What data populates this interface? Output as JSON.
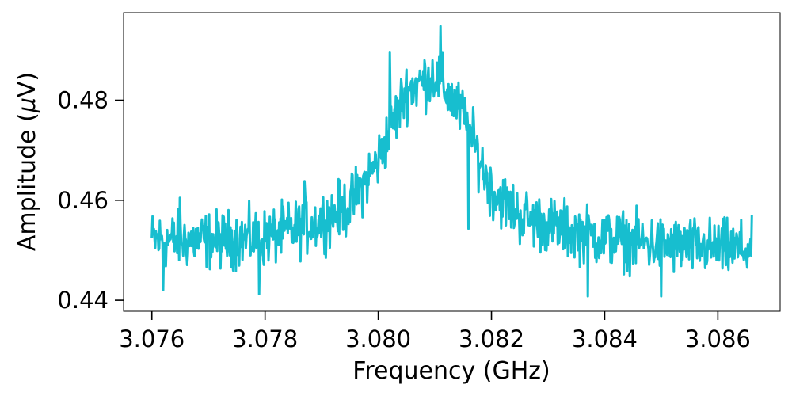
{
  "chart_data": {
    "type": "line",
    "xlabel": "Frequency (GHz)",
    "ylabel_prefix": "Amplitude (",
    "ylabel_mu": "μ",
    "ylabel_suffix": "V)",
    "xlim": [
      3.0755,
      3.0871
    ],
    "ylim": [
      0.4378,
      0.4975
    ],
    "x_ticks": [
      3.076,
      3.078,
      3.08,
      3.082,
      3.084,
      3.086
    ],
    "x_tick_labels": [
      "3.076",
      "3.078",
      "3.080",
      "3.082",
      "3.084",
      "3.086"
    ],
    "y_ticks": [
      0.44,
      0.46,
      0.48
    ],
    "y_tick_labels": [
      "0.44",
      "0.46",
      "0.48"
    ],
    "grid": false,
    "series": [
      {
        "color": "#17becf",
        "x_start": 3.076,
        "x_end": 3.0866,
        "trend": {
          "x": [
            3.076,
            3.077,
            3.078,
            3.0785,
            3.079,
            3.0795,
            3.08,
            3.0805,
            3.081,
            3.0815,
            3.082,
            3.0825,
            3.083,
            3.0835,
            3.084,
            3.085,
            3.0866
          ],
          "y": [
            0.452,
            0.452,
            0.4525,
            0.454,
            0.456,
            0.459,
            0.468,
            0.482,
            0.485,
            0.477,
            0.462,
            0.457,
            0.455,
            0.4535,
            0.4525,
            0.451,
            0.45
          ]
        },
        "noise_amplitude": 0.004,
        "outliers": [
          {
            "x": 3.0816,
            "y": 0.4543
          },
          {
            "x": 3.0811,
            "y": 0.4948
          },
          {
            "x": 3.0802,
            "y": 0.4895
          },
          {
            "x": 3.0787,
            "y": 0.4638
          },
          {
            "x": 3.0762,
            "y": 0.442
          },
          {
            "x": 3.0779,
            "y": 0.4412
          },
          {
            "x": 3.085,
            "y": 0.4408
          },
          {
            "x": 3.0837,
            "y": 0.4408
          },
          {
            "x": 3.0765,
            "y": 0.4605
          }
        ]
      }
    ]
  }
}
